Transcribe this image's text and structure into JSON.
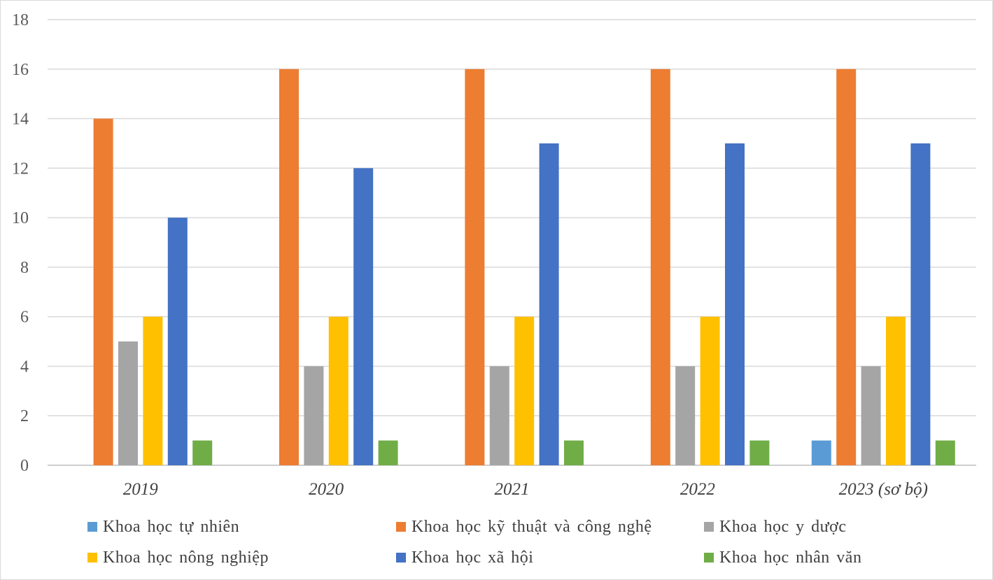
{
  "chart_data": {
    "type": "bar",
    "categories": [
      "2019",
      "2020",
      "2021",
      "2022",
      "2023 (sơ bộ)"
    ],
    "series": [
      {
        "name": "Khoa học tự nhiên",
        "color": "#5B9BD5",
        "values": [
          0,
          0,
          0,
          0,
          1
        ]
      },
      {
        "name": "Khoa học kỹ thuật và công nghệ",
        "color": "#ED7D31",
        "values": [
          14,
          16,
          16,
          16,
          16
        ]
      },
      {
        "name": "Khoa học y dược",
        "color": "#A5A5A5",
        "values": [
          5,
          4,
          4,
          4,
          4
        ]
      },
      {
        "name": "Khoa học nông nghiệp",
        "color": "#FFC000",
        "values": [
          6,
          6,
          6,
          6,
          6
        ]
      },
      {
        "name": "Khoa học xã hội",
        "color": "#4472C4",
        "values": [
          10,
          12,
          13,
          13,
          13
        ]
      },
      {
        "name": "Khoa học nhân văn",
        "color": "#70AD47",
        "values": [
          1,
          1,
          1,
          1,
          1
        ]
      }
    ],
    "yticks": [
      "0",
      "2",
      "4",
      "6",
      "8",
      "10",
      "12",
      "14",
      "16",
      "18"
    ],
    "ylim": [
      0,
      18
    ],
    "grid": true,
    "legend_position": "bottom"
  }
}
